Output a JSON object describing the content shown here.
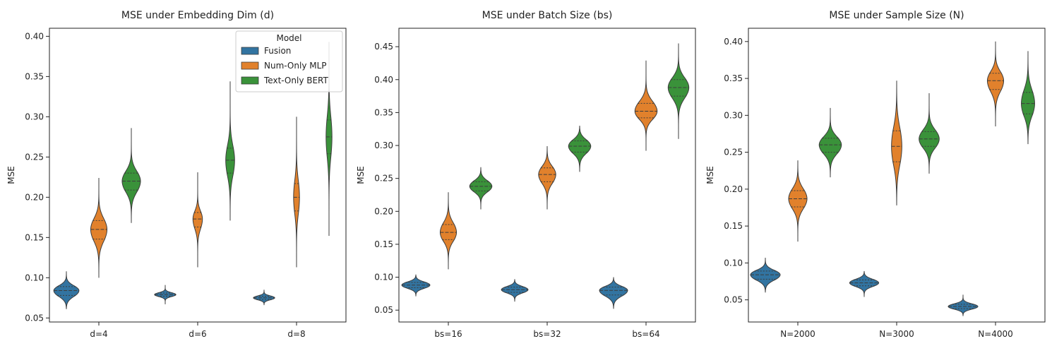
{
  "colors": {
    "Fusion": "#3274a1",
    "Num-Only MLP": "#e1812c",
    "Text-Only BERT": "#3a923a",
    "outline": "#3d3d3d"
  },
  "legend": {
    "title": "Model",
    "entries": [
      "Fusion",
      "Num-Only MLP",
      "Text-Only BERT"
    ],
    "placement": "upper-right of first panel"
  },
  "chart_data": [
    {
      "type": "violin",
      "title": "MSE under Embedding Dim (d)",
      "xlabel": "",
      "ylabel": "MSE",
      "categories": [
        "d=4",
        "d=6",
        "d=8"
      ],
      "ylim": [
        0.045,
        0.41
      ],
      "yticks": [
        0.05,
        0.1,
        0.15,
        0.2,
        0.25,
        0.3,
        0.35,
        0.4
      ],
      "ytick_labels": [
        "0.05",
        "0.10",
        "0.15",
        "0.20",
        "0.25",
        "0.30",
        "0.35",
        "0.40"
      ],
      "series": [
        {
          "name": "Fusion",
          "stats": [
            {
              "min": 0.061,
              "q1": 0.078,
              "median": 0.084,
              "q3": 0.089,
              "max": 0.108,
              "width": 0.85
            },
            {
              "min": 0.067,
              "q1": 0.077,
              "median": 0.079,
              "q3": 0.081,
              "max": 0.091,
              "width": 0.72
            },
            {
              "min": 0.066,
              "q1": 0.073,
              "median": 0.075,
              "q3": 0.077,
              "max": 0.085,
              "width": 0.72
            }
          ]
        },
        {
          "name": "Num-Only MLP",
          "stats": [
            {
              "min": 0.1,
              "q1": 0.148,
              "median": 0.16,
              "q3": 0.171,
              "max": 0.224,
              "width": 0.55
            },
            {
              "min": 0.113,
              "q1": 0.163,
              "median": 0.173,
              "q3": 0.181,
              "max": 0.231,
              "width": 0.32
            },
            {
              "min": 0.113,
              "q1": 0.183,
              "median": 0.2,
              "q3": 0.217,
              "max": 0.3,
              "width": 0.2
            }
          ]
        },
        {
          "name": "Text-Only BERT",
          "stats": [
            {
              "min": 0.168,
              "q1": 0.209,
              "median": 0.22,
              "q3": 0.23,
              "max": 0.286,
              "width": 0.62
            },
            {
              "min": 0.171,
              "q1": 0.23,
              "median": 0.246,
              "q3": 0.261,
              "max": 0.344,
              "width": 0.3
            },
            {
              "min": 0.152,
              "q1": 0.254,
              "median": 0.275,
              "q3": 0.296,
              "max": 0.393,
              "width": 0.2
            }
          ]
        }
      ]
    },
    {
      "type": "violin",
      "title": "MSE under Batch Size (bs)",
      "xlabel": "",
      "ylabel": "MSE",
      "categories": [
        "bs=16",
        "bs=32",
        "bs=64"
      ],
      "ylim": [
        0.032,
        0.478
      ],
      "yticks": [
        0.05,
        0.1,
        0.15,
        0.2,
        0.25,
        0.3,
        0.35,
        0.4,
        0.45
      ],
      "ytick_labels": [
        "0.05",
        "0.10",
        "0.15",
        "0.20",
        "0.25",
        "0.30",
        "0.35",
        "0.40",
        "0.45"
      ],
      "series": [
        {
          "name": "Fusion",
          "stats": [
            {
              "min": 0.071,
              "q1": 0.084,
              "median": 0.088,
              "q3": 0.092,
              "max": 0.104,
              "width": 0.95
            },
            {
              "min": 0.063,
              "q1": 0.077,
              "median": 0.081,
              "q3": 0.085,
              "max": 0.097,
              "width": 0.9
            },
            {
              "min": 0.052,
              "q1": 0.073,
              "median": 0.08,
              "q3": 0.085,
              "max": 0.1,
              "width": 0.95
            }
          ]
        },
        {
          "name": "Num-Only MLP",
          "stats": [
            {
              "min": 0.112,
              "q1": 0.157,
              "median": 0.168,
              "q3": 0.18,
              "max": 0.229,
              "width": 0.55
            },
            {
              "min": 0.203,
              "q1": 0.245,
              "median": 0.256,
              "q3": 0.266,
              "max": 0.299,
              "width": 0.58
            },
            {
              "min": 0.292,
              "q1": 0.342,
              "median": 0.352,
              "q3": 0.364,
              "max": 0.429,
              "width": 0.75
            }
          ]
        },
        {
          "name": "Text-Only BERT",
          "stats": [
            {
              "min": 0.203,
              "q1": 0.231,
              "median": 0.238,
              "q3": 0.245,
              "max": 0.267,
              "width": 0.75
            },
            {
              "min": 0.26,
              "q1": 0.29,
              "median": 0.299,
              "q3": 0.307,
              "max": 0.33,
              "width": 0.75
            },
            {
              "min": 0.31,
              "q1": 0.375,
              "median": 0.388,
              "q3": 0.4,
              "max": 0.455,
              "width": 0.7
            }
          ]
        }
      ]
    },
    {
      "type": "violin",
      "title": "MSE under Sample Size (N)",
      "xlabel": "",
      "ylabel": "MSE",
      "categories": [
        "N=2000",
        "N=3000",
        "N=4000"
      ],
      "ylim": [
        0.02,
        0.418
      ],
      "yticks": [
        0.05,
        0.1,
        0.15,
        0.2,
        0.25,
        0.3,
        0.35,
        0.4
      ],
      "ytick_labels": [
        "0.05",
        "0.10",
        "0.15",
        "0.20",
        "0.25",
        "0.30",
        "0.35",
        "0.40"
      ],
      "series": [
        {
          "name": "Fusion",
          "stats": [
            {
              "min": 0.06,
              "q1": 0.078,
              "median": 0.084,
              "q3": 0.089,
              "max": 0.107,
              "width": 1.0
            },
            {
              "min": 0.054,
              "q1": 0.069,
              "median": 0.073,
              "q3": 0.077,
              "max": 0.089,
              "width": 0.98
            },
            {
              "min": 0.028,
              "q1": 0.038,
              "median": 0.041,
              "q3": 0.044,
              "max": 0.057,
              "width": 1.0
            }
          ]
        },
        {
          "name": "Num-Only MLP",
          "stats": [
            {
              "min": 0.129,
              "q1": 0.176,
              "median": 0.187,
              "q3": 0.198,
              "max": 0.239,
              "width": 0.62
            },
            {
              "min": 0.178,
              "q1": 0.237,
              "median": 0.258,
              "q3": 0.279,
              "max": 0.347,
              "width": 0.35
            },
            {
              "min": 0.285,
              "q1": 0.335,
              "median": 0.347,
              "q3": 0.357,
              "max": 0.4,
              "width": 0.55
            }
          ]
        },
        {
          "name": "Text-Only BERT",
          "stats": [
            {
              "min": 0.216,
              "q1": 0.25,
              "median": 0.26,
              "q3": 0.269,
              "max": 0.31,
              "width": 0.75
            },
            {
              "min": 0.221,
              "q1": 0.258,
              "median": 0.268,
              "q3": 0.278,
              "max": 0.33,
              "width": 0.68
            },
            {
              "min": 0.261,
              "q1": 0.302,
              "median": 0.316,
              "q3": 0.331,
              "max": 0.387,
              "width": 0.45
            }
          ]
        }
      ]
    }
  ]
}
